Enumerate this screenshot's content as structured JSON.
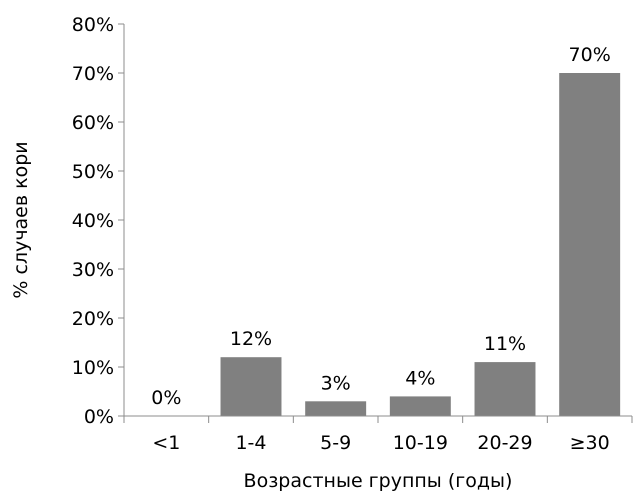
{
  "chart_data": {
    "type": "bar",
    "title": "",
    "xlabel": "Возрастные группы (годы)",
    "ylabel": "% случаев кори",
    "categories": [
      "<1",
      "1-4",
      "5-9",
      "10-19",
      "20-29",
      "≥30"
    ],
    "values": [
      0,
      12,
      3,
      4,
      11,
      70
    ],
    "data_labels": [
      "0%",
      "12%",
      "3%",
      "4%",
      "11%",
      "70%"
    ],
    "ylim": [
      0,
      80
    ],
    "yticks": [
      "0%",
      "10%",
      "20%",
      "30%",
      "40%",
      "50%",
      "60%",
      "70%",
      "80%"
    ],
    "grid": false,
    "legend": "none",
    "bar_color": "#808080"
  }
}
